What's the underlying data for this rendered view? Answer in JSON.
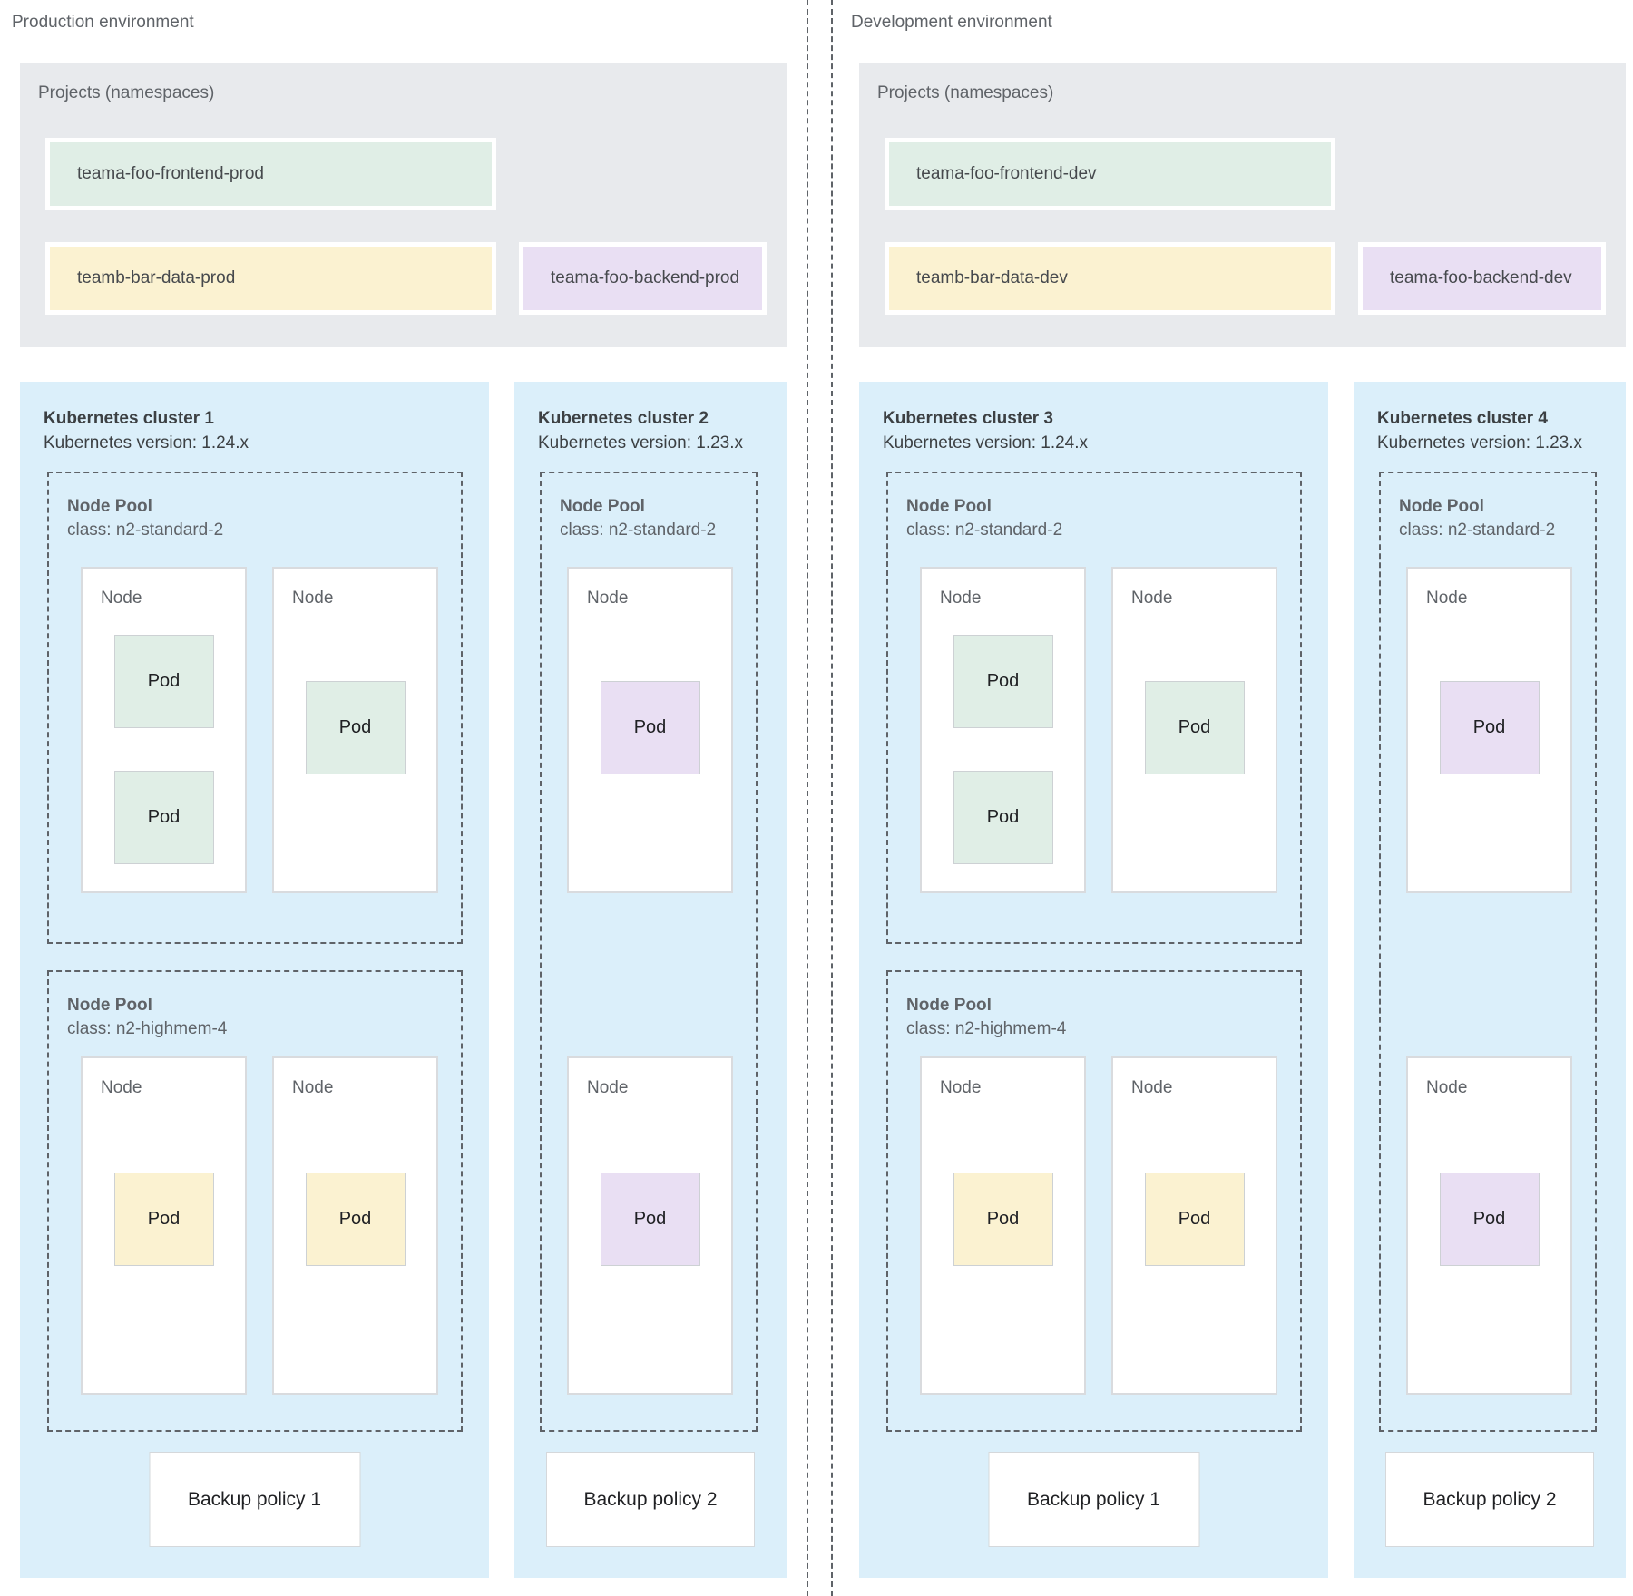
{
  "colors": {
    "page_bg": "#FFFFFF",
    "projects_bg": "#E8EAED",
    "cluster_bg": "#DBEFFA",
    "node_bg": "#FFFFFF",
    "green": "#E0EEE6",
    "yellow": "#FBF2D1",
    "purple": "#E9DFF3",
    "dash_border": "#5F6368",
    "node_border": "#D9DBDE",
    "pod_border": "#CDD1D4",
    "text_dark": "#3C4043",
    "text_gray": "#5F6368",
    "text_black": "#202124"
  },
  "environments": [
    {
      "label": "Production environment",
      "projects": {
        "title": "Projects (namespaces)",
        "namespaces_row1": [
          {
            "name": "teama-foo-frontend-prod",
            "color": "green"
          }
        ],
        "namespaces_row2": [
          {
            "name": "teamb-bar-data-prod",
            "color": "yellow"
          },
          {
            "name": "teama-foo-backend-prod",
            "color": "purple"
          }
        ]
      },
      "clusters": [
        {
          "title": "Kubernetes cluster 1",
          "version": "Kubernetes version: 1.24.x",
          "backup_policy": "Backup policy 1",
          "node_pools": [
            {
              "title": "Node Pool",
              "machine_class": "class: n2-standard-2",
              "nodes": [
                {
                  "label": "Node",
                  "pods": [
                    {
                      "label": "Pod",
                      "color": "green"
                    },
                    {
                      "label": "Pod",
                      "color": "green"
                    }
                  ]
                },
                {
                  "label": "Node",
                  "pods": [
                    {
                      "label": "Pod",
                      "color": "green"
                    }
                  ]
                }
              ]
            },
            {
              "title": "Node Pool",
              "machine_class": "class: n2-highmem-4",
              "nodes": [
                {
                  "label": "Node",
                  "pods": [
                    {
                      "label": "Pod",
                      "color": "yellow"
                    }
                  ]
                },
                {
                  "label": "Node",
                  "pods": [
                    {
                      "label": "Pod",
                      "color": "yellow"
                    }
                  ]
                }
              ]
            }
          ]
        },
        {
          "title": "Kubernetes cluster 2",
          "version": "Kubernetes version: 1.23.x",
          "backup_policy": "Backup policy 2",
          "node_pools": [
            {
              "title": "Node Pool",
              "machine_class": "class: n2-standard-2",
              "nodes": [
                {
                  "label": "Node",
                  "pods": [
                    {
                      "label": "Pod",
                      "color": "purple"
                    }
                  ]
                },
                {
                  "label": "Node",
                  "pods": [
                    {
                      "label": "Pod",
                      "color": "purple"
                    }
                  ]
                }
              ]
            }
          ]
        }
      ]
    },
    {
      "label": "Development environment",
      "projects": {
        "title": "Projects (namespaces)",
        "namespaces_row1": [
          {
            "name": "teama-foo-frontend-dev",
            "color": "green"
          }
        ],
        "namespaces_row2": [
          {
            "name": "teamb-bar-data-dev",
            "color": "yellow"
          },
          {
            "name": "teama-foo-backend-dev",
            "color": "purple"
          }
        ]
      },
      "clusters": [
        {
          "title": "Kubernetes cluster 3",
          "version": "Kubernetes version: 1.24.x",
          "backup_policy": "Backup policy 1",
          "node_pools": [
            {
              "title": "Node Pool",
              "machine_class": "class: n2-standard-2",
              "nodes": [
                {
                  "label": "Node",
                  "pods": [
                    {
                      "label": "Pod",
                      "color": "green"
                    },
                    {
                      "label": "Pod",
                      "color": "green"
                    }
                  ]
                },
                {
                  "label": "Node",
                  "pods": [
                    {
                      "label": "Pod",
                      "color": "green"
                    }
                  ]
                }
              ]
            },
            {
              "title": "Node Pool",
              "machine_class": "class: n2-highmem-4",
              "nodes": [
                {
                  "label": "Node",
                  "pods": [
                    {
                      "label": "Pod",
                      "color": "yellow"
                    }
                  ]
                },
                {
                  "label": "Node",
                  "pods": [
                    {
                      "label": "Pod",
                      "color": "yellow"
                    }
                  ]
                }
              ]
            }
          ]
        },
        {
          "title": "Kubernetes cluster 4",
          "version": "Kubernetes version: 1.23.x",
          "backup_policy": "Backup policy 2",
          "node_pools": [
            {
              "title": "Node Pool",
              "machine_class": "class: n2-standard-2",
              "nodes": [
                {
                  "label": "Node",
                  "pods": [
                    {
                      "label": "Pod",
                      "color": "purple"
                    }
                  ]
                },
                {
                  "label": "Node",
                  "pods": [
                    {
                      "label": "Pod",
                      "color": "purple"
                    }
                  ]
                }
              ]
            }
          ]
        }
      ]
    }
  ]
}
